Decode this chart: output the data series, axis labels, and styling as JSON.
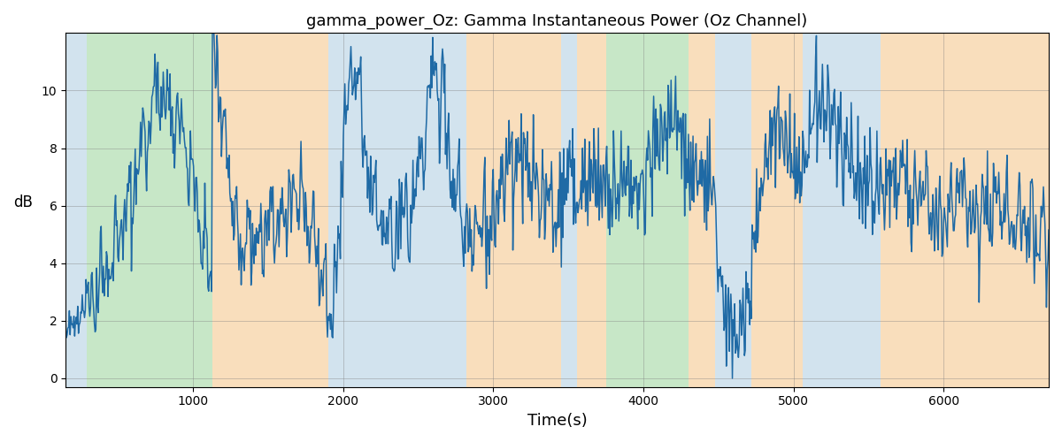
{
  "title": "gamma_power_Oz: Gamma Instantaneous Power (Oz Channel)",
  "xlabel": "Time(s)",
  "ylabel": "dB",
  "xlim": [
    150,
    6700
  ],
  "ylim": [
    -0.3,
    12
  ],
  "yticks": [
    0,
    2,
    4,
    6,
    8,
    10
  ],
  "line_color": "#1f6aa5",
  "line_width": 1.1,
  "background_color": "#ffffff",
  "bands": [
    {
      "start": 150,
      "end": 290,
      "color": "#aecde0",
      "alpha": 0.55
    },
    {
      "start": 290,
      "end": 1130,
      "color": "#90d090",
      "alpha": 0.5
    },
    {
      "start": 1130,
      "end": 1900,
      "color": "#f5c990",
      "alpha": 0.6
    },
    {
      "start": 1900,
      "end": 2820,
      "color": "#aecde0",
      "alpha": 0.55
    },
    {
      "start": 2820,
      "end": 3450,
      "color": "#f5c990",
      "alpha": 0.6
    },
    {
      "start": 3450,
      "end": 3560,
      "color": "#aecde0",
      "alpha": 0.55
    },
    {
      "start": 3560,
      "end": 3750,
      "color": "#f5c990",
      "alpha": 0.6
    },
    {
      "start": 3750,
      "end": 4300,
      "color": "#90d090",
      "alpha": 0.5
    },
    {
      "start": 4300,
      "end": 4480,
      "color": "#f5c990",
      "alpha": 0.6
    },
    {
      "start": 4480,
      "end": 4720,
      "color": "#aecde0",
      "alpha": 0.55
    },
    {
      "start": 4720,
      "end": 5060,
      "color": "#f5c990",
      "alpha": 0.6
    },
    {
      "start": 5060,
      "end": 5580,
      "color": "#aecde0",
      "alpha": 0.55
    },
    {
      "start": 5580,
      "end": 5720,
      "color": "#f5c990",
      "alpha": 0.6
    },
    {
      "start": 5720,
      "end": 6700,
      "color": "#f5c990",
      "alpha": 0.6
    }
  ],
  "seed": 17,
  "n_points": 1300
}
